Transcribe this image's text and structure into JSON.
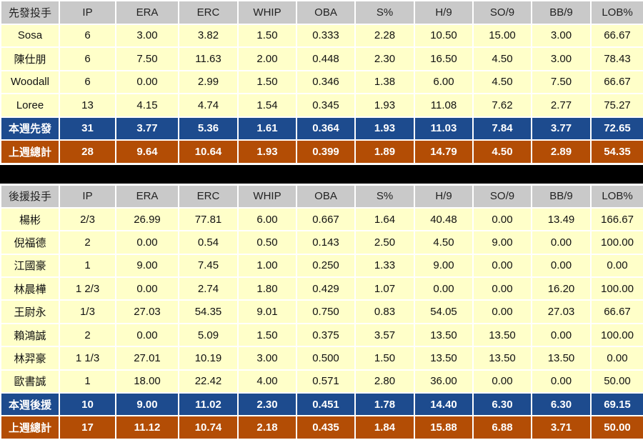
{
  "columns": [
    "IP",
    "ERA",
    "ERC",
    "WHIP",
    "OBA",
    "S%",
    "H/9",
    "SO/9",
    "BB/9",
    "LOB%"
  ],
  "starters": {
    "header": "先發投手",
    "rows": [
      {
        "name": "Sosa",
        "stats": [
          "6",
          "3.00",
          "3.82",
          "1.50",
          "0.333",
          "2.28",
          "10.50",
          "15.00",
          "3.00",
          "66.67"
        ]
      },
      {
        "name": "陳仕朋",
        "stats": [
          "6",
          "7.50",
          "11.63",
          "2.00",
          "0.448",
          "2.30",
          "16.50",
          "4.50",
          "3.00",
          "78.43"
        ]
      },
      {
        "name": "Woodall",
        "stats": [
          "6",
          "0.00",
          "2.99",
          "1.50",
          "0.346",
          "1.38",
          "6.00",
          "4.50",
          "7.50",
          "66.67"
        ]
      },
      {
        "name": "Loree",
        "stats": [
          "13",
          "4.15",
          "4.74",
          "1.54",
          "0.345",
          "1.93",
          "11.08",
          "7.62",
          "2.77",
          "75.27"
        ]
      }
    ],
    "this_week": {
      "label": "本週先發",
      "stats": [
        "31",
        "3.77",
        "5.36",
        "1.61",
        "0.364",
        "1.93",
        "11.03",
        "7.84",
        "3.77",
        "72.65"
      ]
    },
    "last_week": {
      "label": "上週總計",
      "stats": [
        "28",
        "9.64",
        "10.64",
        "1.93",
        "0.399",
        "1.89",
        "14.79",
        "4.50",
        "2.89",
        "54.35"
      ]
    }
  },
  "relievers": {
    "header": "後援投手",
    "rows": [
      {
        "name": "楊彬",
        "stats": [
          "2/3",
          "26.99",
          "77.81",
          "6.00",
          "0.667",
          "1.64",
          "40.48",
          "0.00",
          "13.49",
          "166.67"
        ]
      },
      {
        "name": "倪福德",
        "stats": [
          "2",
          "0.00",
          "0.54",
          "0.50",
          "0.143",
          "2.50",
          "4.50",
          "9.00",
          "0.00",
          "100.00"
        ]
      },
      {
        "name": "江國豪",
        "stats": [
          "1",
          "9.00",
          "7.45",
          "1.00",
          "0.250",
          "1.33",
          "9.00",
          "0.00",
          "0.00",
          "0.00"
        ]
      },
      {
        "name": "林晨樺",
        "stats": [
          "1 2/3",
          "0.00",
          "2.74",
          "1.80",
          "0.429",
          "1.07",
          "0.00",
          "0.00",
          "16.20",
          "100.00"
        ]
      },
      {
        "name": "王尉永",
        "stats": [
          "1/3",
          "27.03",
          "54.35",
          "9.01",
          "0.750",
          "0.83",
          "54.05",
          "0.00",
          "27.03",
          "66.67"
        ]
      },
      {
        "name": "賴鴻誠",
        "stats": [
          "2",
          "0.00",
          "5.09",
          "1.50",
          "0.375",
          "3.57",
          "13.50",
          "13.50",
          "0.00",
          "100.00"
        ]
      },
      {
        "name": "林羿豪",
        "stats": [
          "1 1/3",
          "27.01",
          "10.19",
          "3.00",
          "0.500",
          "1.50",
          "13.50",
          "13.50",
          "13.50",
          "0.00"
        ]
      },
      {
        "name": "歐書誠",
        "stats": [
          "1",
          "18.00",
          "22.42",
          "4.00",
          "0.571",
          "2.80",
          "36.00",
          "0.00",
          "0.00",
          "50.00"
        ]
      }
    ],
    "this_week": {
      "label": "本週後援",
      "stats": [
        "10",
        "9.00",
        "11.02",
        "2.30",
        "0.451",
        "1.78",
        "14.40",
        "6.30",
        "6.30",
        "69.15"
      ]
    },
    "last_week": {
      "label": "上週總計",
      "stats": [
        "17",
        "11.12",
        "10.74",
        "2.18",
        "0.435",
        "1.84",
        "15.88",
        "6.88",
        "3.71",
        "50.00"
      ]
    }
  }
}
